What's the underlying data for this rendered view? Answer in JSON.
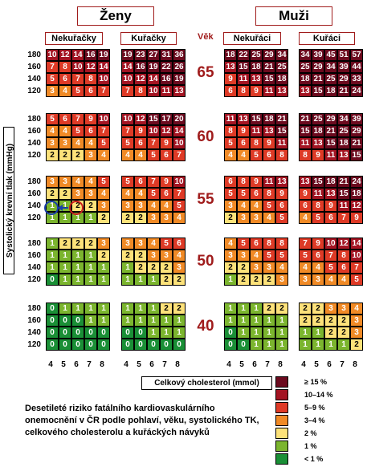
{
  "title_women": "Ženy",
  "title_men": "Muži",
  "groups": {
    "women_nonsmoker": "Nekuřačky",
    "women_smoker": "Kuřačky",
    "men_nonsmoker": "Nekuřáci",
    "men_smoker": "Kuřáci"
  },
  "age_title": "Věk",
  "y_axis_label": "Systolický krevní tlak (mmHg)",
  "x_axis_label": "Celkový cholesterol (mmol)",
  "caption": "Desetileté riziko fatálního kardiovaskulárního onemocnění v ČR podle pohlaví, věku, systolického TK, celkového cholesterolu a kuřáckých návyků",
  "legend": [
    {
      "label": "≥ 15 %",
      "color": "#6b0a1e"
    },
    {
      "label": "10–14 %",
      "color": "#a31422"
    },
    {
      "label": "5–9 %",
      "color": "#de3a26"
    },
    {
      "label": "3–4 %",
      "color": "#f08a26"
    },
    {
      "label": "2 %",
      "color": "#fde27a"
    },
    {
      "label": "1 %",
      "color": "#7bb52e"
    },
    {
      "label": "< 1 %",
      "color": "#1a8f36"
    }
  ],
  "chart_data": {
    "type": "heatmap",
    "ages": [
      "65",
      "60",
      "55",
      "50",
      "40"
    ],
    "systolic_bp": [
      "180",
      "160",
      "140",
      "120"
    ],
    "cholesterol": [
      "4",
      "5",
      "6",
      "7",
      "8"
    ],
    "panels": {
      "women_nonsmoker": [
        [
          [
            10,
            12,
            14,
            16,
            19
          ],
          [
            7,
            8,
            10,
            12,
            14
          ],
          [
            5,
            6,
            7,
            8,
            10
          ],
          [
            3,
            4,
            5,
            6,
            7
          ]
        ],
        [
          [
            5,
            6,
            7,
            9,
            10
          ],
          [
            4,
            4,
            5,
            6,
            7
          ],
          [
            3,
            3,
            4,
            4,
            5
          ],
          [
            2,
            2,
            2,
            3,
            4
          ]
        ],
        [
          [
            3,
            3,
            4,
            4,
            5
          ],
          [
            2,
            2,
            3,
            3,
            4
          ],
          [
            1,
            1,
            2,
            2,
            3
          ],
          [
            1,
            1,
            1,
            1,
            2
          ]
        ],
        [
          [
            1,
            2,
            2,
            2,
            3
          ],
          [
            1,
            1,
            1,
            1,
            2
          ],
          [
            1,
            1,
            1,
            1,
            1
          ],
          [
            0,
            1,
            1,
            1,
            1
          ]
        ],
        [
          [
            0,
            1,
            1,
            1,
            1
          ],
          [
            0,
            0,
            0,
            1,
            1
          ],
          [
            0,
            0,
            0,
            0,
            0
          ],
          [
            0,
            0,
            0,
            0,
            0
          ]
        ]
      ],
      "women_smoker": [
        [
          [
            19,
            23,
            27,
            31,
            36
          ],
          [
            14,
            16,
            19,
            22,
            26
          ],
          [
            10,
            12,
            14,
            16,
            19
          ],
          [
            7,
            8,
            10,
            11,
            13
          ]
        ],
        [
          [
            10,
            12,
            15,
            17,
            20
          ],
          [
            7,
            9,
            10,
            12,
            14
          ],
          [
            5,
            6,
            7,
            9,
            10
          ],
          [
            4,
            4,
            5,
            6,
            7
          ]
        ],
        [
          [
            5,
            6,
            7,
            9,
            10
          ],
          [
            4,
            4,
            5,
            6,
            7
          ],
          [
            3,
            3,
            4,
            4,
            5
          ],
          [
            2,
            2,
            3,
            3,
            4
          ]
        ],
        [
          [
            3,
            3,
            4,
            5,
            6
          ],
          [
            2,
            2,
            3,
            3,
            4
          ],
          [
            1,
            2,
            2,
            2,
            3
          ],
          [
            1,
            1,
            1,
            2,
            2
          ]
        ],
        [
          [
            1,
            1,
            1,
            2,
            2
          ],
          [
            1,
            1,
            1,
            1,
            1
          ],
          [
            0,
            0,
            1,
            1,
            1
          ],
          [
            0,
            0,
            0,
            0,
            0
          ]
        ]
      ],
      "men_nonsmoker": [
        [
          [
            18,
            22,
            25,
            29,
            34
          ],
          [
            13,
            15,
            18,
            21,
            25
          ],
          [
            9,
            11,
            13,
            15,
            18
          ],
          [
            6,
            8,
            9,
            11,
            13
          ]
        ],
        [
          [
            11,
            13,
            15,
            18,
            21
          ],
          [
            8,
            9,
            11,
            13,
            15
          ],
          [
            5,
            6,
            8,
            9,
            11
          ],
          [
            4,
            4,
            5,
            6,
            8
          ]
        ],
        [
          [
            6,
            8,
            9,
            11,
            13
          ],
          [
            5,
            5,
            6,
            8,
            9
          ],
          [
            3,
            4,
            4,
            5,
            6
          ],
          [
            2,
            3,
            3,
            4,
            5
          ]
        ],
        [
          [
            4,
            5,
            6,
            8,
            8
          ],
          [
            3,
            3,
            4,
            5,
            5
          ],
          [
            2,
            2,
            3,
            3,
            4
          ],
          [
            1,
            2,
            2,
            2,
            3
          ]
        ],
        [
          [
            1,
            1,
            1,
            2,
            2
          ],
          [
            1,
            1,
            1,
            1,
            1
          ],
          [
            0,
            1,
            1,
            1,
            1
          ],
          [
            0,
            0,
            1,
            1,
            1
          ]
        ]
      ],
      "men_smoker": [
        [
          [
            34,
            39,
            45,
            51,
            57
          ],
          [
            25,
            29,
            34,
            39,
            44
          ],
          [
            18,
            21,
            25,
            29,
            33
          ],
          [
            13,
            15,
            18,
            21,
            24
          ]
        ],
        [
          [
            21,
            25,
            29,
            34,
            39
          ],
          [
            15,
            18,
            21,
            25,
            29
          ],
          [
            11,
            13,
            15,
            18,
            21
          ],
          [
            8,
            9,
            11,
            13,
            15
          ]
        ],
        [
          [
            13,
            15,
            18,
            21,
            24
          ],
          [
            9,
            11,
            13,
            15,
            18
          ],
          [
            6,
            8,
            9,
            11,
            12
          ],
          [
            4,
            5,
            6,
            7,
            9
          ]
        ],
        [
          [
            7,
            9,
            10,
            12,
            14
          ],
          [
            5,
            6,
            7,
            8,
            10
          ],
          [
            4,
            4,
            5,
            6,
            7
          ],
          [
            3,
            3,
            4,
            4,
            5
          ]
        ],
        [
          [
            2,
            2,
            3,
            3,
            4
          ],
          [
            2,
            2,
            2,
            2,
            3
          ],
          [
            1,
            1,
            2,
            2,
            3
          ],
          [
            1,
            1,
            1,
            1,
            2
          ]
        ]
      ]
    },
    "annotation_values": [
      "1",
      "2"
    ]
  }
}
